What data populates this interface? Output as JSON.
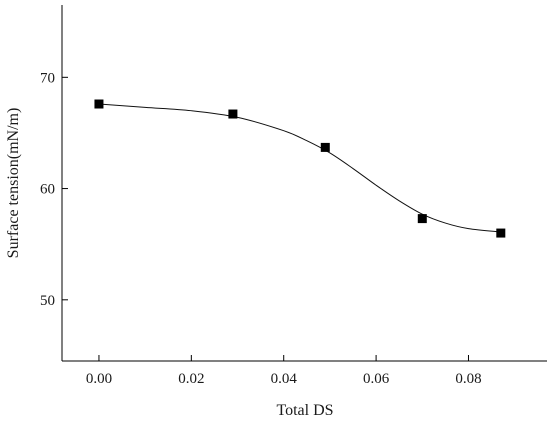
{
  "chart_data": {
    "type": "scatter",
    "title": "",
    "xlabel": "Total DS",
    "ylabel": "Surface tension(mN/m)",
    "xlim": [
      -0.008,
      0.097
    ],
    "ylim": [
      44.5,
      76.5
    ],
    "xticks": [
      0.0,
      0.02,
      0.04,
      0.06,
      0.08
    ],
    "xtick_labels": [
      "0.00",
      "0.02",
      "0.04",
      "0.06",
      "0.08"
    ],
    "yticks": [
      50,
      60,
      70
    ],
    "ytick_labels": [
      "50",
      "60",
      "70"
    ],
    "grid": false,
    "legend": "none",
    "series": [
      {
        "marker": "square",
        "x": [
          0.0,
          0.029,
          0.049,
          0.07,
          0.087
        ],
        "y": [
          67.6,
          66.7,
          63.7,
          57.3,
          56.0
        ]
      }
    ],
    "fit_curve": {
      "type": "sigmoidal",
      "x": [
        0.0,
        0.01,
        0.02,
        0.03,
        0.04,
        0.045,
        0.05,
        0.055,
        0.06,
        0.065,
        0.07,
        0.075,
        0.08,
        0.087
      ],
      "y": [
        67.6,
        67.3,
        67.0,
        66.4,
        65.2,
        64.3,
        63.2,
        61.8,
        60.3,
        58.9,
        57.7,
        56.9,
        56.4,
        56.1
      ]
    }
  }
}
